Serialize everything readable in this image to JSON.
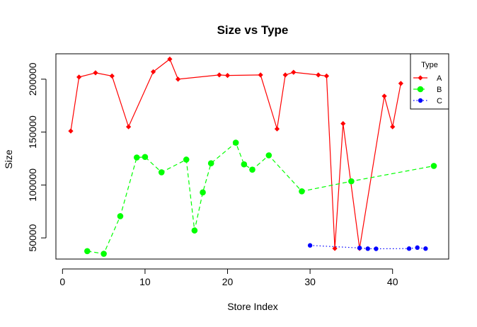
{
  "chart_data": {
    "type": "line",
    "title": "Size vs Type",
    "xlabel": "Store Index",
    "ylabel": "Size",
    "xlim": [
      -0.8,
      46.8
    ],
    "ylim": [
      30000,
      224000
    ],
    "xticks": [
      0,
      10,
      20,
      30,
      40
    ],
    "yticks": [
      50000,
      100000,
      150000,
      200000
    ],
    "grid": false,
    "legend": {
      "title": "Type",
      "position": "top-right"
    },
    "series": [
      {
        "name": "A",
        "color": "#ff0000",
        "line": "solid",
        "marker": "diamond",
        "x": [
          1,
          2,
          4,
          6,
          8,
          11,
          13,
          14,
          19,
          20,
          24,
          26,
          27,
          28,
          31,
          32,
          33,
          34,
          36,
          39,
          40,
          41
        ],
        "y": [
          151000,
          202000,
          206000,
          203000,
          155000,
          207000,
          219000,
          200000,
          204000,
          203500,
          204000,
          153000,
          204000,
          206500,
          204000,
          203000,
          40000,
          158000,
          40000,
          184000,
          155000,
          196000
        ]
      },
      {
        "name": "B",
        "color": "#00ff00",
        "line": "dashed",
        "marker": "circle",
        "x": [
          3,
          5,
          7,
          9,
          10,
          12,
          15,
          16,
          17,
          18,
          21,
          22,
          23,
          25,
          29,
          35,
          45
        ],
        "y": [
          37500,
          35000,
          70500,
          126000,
          126500,
          112000,
          124000,
          57000,
          93000,
          120500,
          140000,
          119500,
          114500,
          128000,
          94000,
          103500,
          118000
        ]
      },
      {
        "name": "C",
        "color": "#0000ff",
        "line": "dotted",
        "marker": "small-circle",
        "x": [
          30,
          36,
          37,
          38,
          42,
          43,
          44
        ],
        "y": [
          42900,
          40500,
          39800,
          39700,
          39900,
          40800,
          39900
        ]
      }
    ]
  }
}
